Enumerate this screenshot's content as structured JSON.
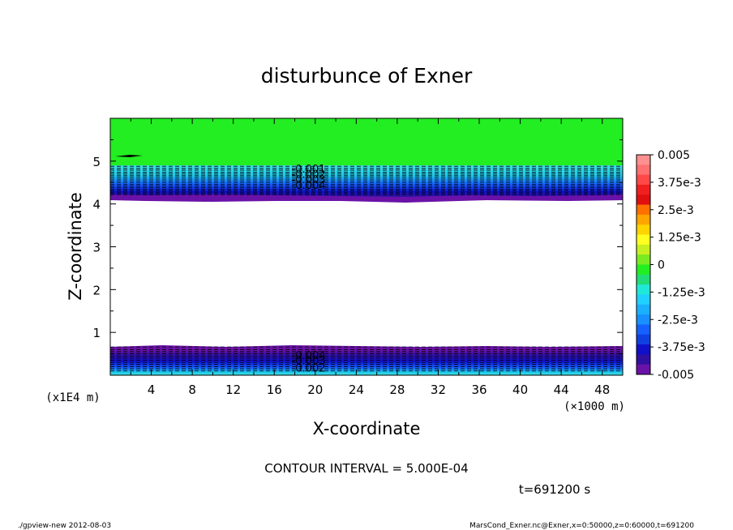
{
  "chart_data": {
    "type": "heatmap",
    "title": "disturbunce of Exner",
    "xlabel": "X-coordinate",
    "ylabel": "Z-coordinate",
    "x_unit": "(×1000 m)",
    "y_unit": "(x1E4 m)",
    "xlim": [
      0,
      50
    ],
    "ylim": [
      0,
      6
    ],
    "x_ticks": [
      "4",
      "8",
      "12",
      "16",
      "20",
      "24",
      "28",
      "32",
      "36",
      "40",
      "44",
      "48"
    ],
    "y_ticks": [
      "1",
      "2",
      "3",
      "4",
      "5"
    ],
    "colorbar": {
      "range": [
        -0.005,
        0.005
      ],
      "labels": [
        "0.005",
        "3.75e-3",
        "2.5e-3",
        "1.25e-3",
        "0",
        "-1.25e-3",
        "-2.5e-3",
        "-3.75e-3",
        "-0.005"
      ]
    },
    "contour_labels": [
      {
        "text": "-0.001",
        "x": 19.5,
        "y": 4.83
      },
      {
        "text": "-0.002",
        "x": 19.5,
        "y": 4.7
      },
      {
        "text": "-0.003",
        "x": 19.5,
        "y": 4.58
      },
      {
        "text": "-0.004",
        "x": 19.5,
        "y": 4.45
      },
      {
        "text": "-0.004",
        "x": 19.5,
        "y": 0.47
      },
      {
        "text": "-0.003",
        "x": 19.5,
        "y": 0.35
      },
      {
        "text": "-0.002",
        "x": 19.5,
        "y": 0.18
      }
    ],
    "regions": [
      {
        "z_from": 4.9,
        "z_to": 6.0,
        "value": 0.0,
        "description": "green, near zero"
      },
      {
        "z_from": 4.0,
        "z_to": 4.9,
        "value_from": -0.0002,
        "value_to": -0.005,
        "description": "negative band decreasing downward"
      },
      {
        "z_from": 0.75,
        "z_to": 4.0,
        "value": null,
        "description": "blank"
      },
      {
        "z_from": 0.0,
        "z_to": 0.75,
        "value_from": -0.005,
        "value_to": -0.0015,
        "description": "negative band near surface"
      }
    ],
    "grid": false,
    "legend": "colorbar right"
  },
  "contour_interval": "CONTOUR INTERVAL = 5.000E-04",
  "time_label": "t=691200 s",
  "footer_left": "./gpview-new   2012-08-03",
  "footer_right": "MarsCond_Exner.nc@Exner,x=0:50000,z=0:60000,t=691200"
}
